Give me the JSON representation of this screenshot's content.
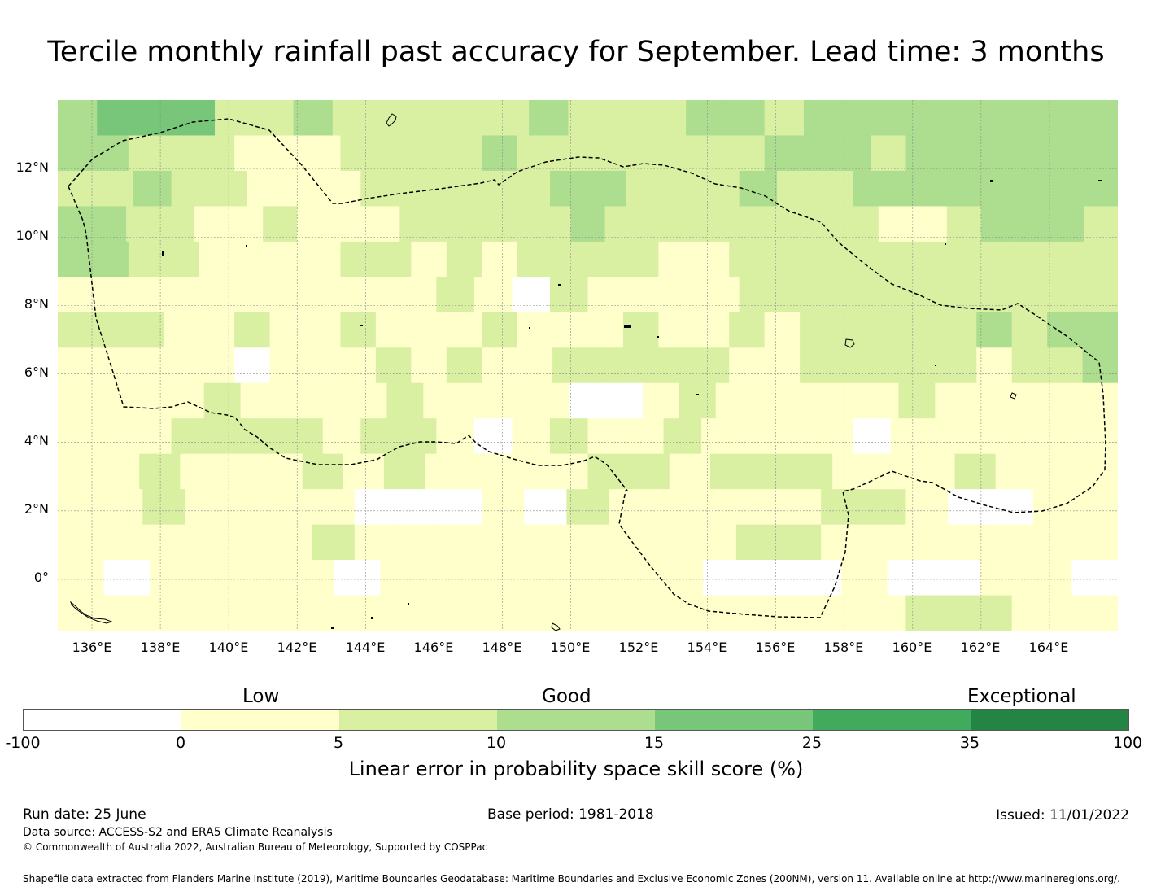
{
  "title": "Tercile monthly rainfall past accuracy for September. Lead time: 3 months",
  "map": {
    "lat_labels": [
      "12°N",
      "10°N",
      "8°N",
      "6°N",
      "4°N",
      "2°N",
      "0°"
    ],
    "lon_labels": [
      "136°E",
      "138°E",
      "140°E",
      "142°E",
      "144°E",
      "146°E",
      "148°E",
      "150°E",
      "152°E",
      "154°E",
      "156°E",
      "158°E",
      "160°E",
      "162°E",
      "164°E"
    ],
    "lon_range": [
      135,
      166
    ],
    "lat_range": [
      -1.5,
      14
    ],
    "grid_rows": [
      "344422322222322233233333333",
      "332221112222322222223332333333",
      "2232211122222332223223333333",
      "3322112111222223222222221123332",
      "332211112212122221122222222222",
      "1111111111210211112222222222",
      "222112112111211121121222223233",
      "111110111212112222211222221223",
      "11112111121111001211111211111",
      "1112222122101211211110111111",
      "11211121211112212221112111",
      "1121111000102111112210011",
      "1111112111111111221111111",
      "10111101111111000100110",
      "1111111121"
    ]
  },
  "colors": {
    "band_neg100_0": "#ffffff",
    "band_0_5": "#ffffcc",
    "band_5_10": "#d9f0a3",
    "band_10_15": "#addd8e",
    "band_15_25": "#78c679",
    "band_25_35": "#41ab5d",
    "band_35_100": "#238443"
  },
  "colorbar": {
    "ticks": [
      "-100",
      "0",
      "5",
      "10",
      "15",
      "25",
      "35",
      "100"
    ],
    "categories": [
      "Low",
      "Good",
      "Exceptional"
    ],
    "label": "Linear error in probability space skill score (%)"
  },
  "footer": {
    "run_date": "Run date: 25 June",
    "base_period": "Base period: 1981-2018",
    "issued": "Issued: 11/01/2022",
    "data_source": "Data source: ACCESS-S2 and ERA5 Climate Reanalysis",
    "copyright": "© Commonwealth of Australia 2022, Australian Bureau of Meteorology, Supported by COSPPac",
    "shapefile": "Shapefile data extracted from Flanders Marine Institute (2019), Maritime Boundaries Geodatabase: Maritime Boundaries and Exclusive Economic Zones (200NM), version 11. Available online at http://www.marineregions.org/."
  }
}
